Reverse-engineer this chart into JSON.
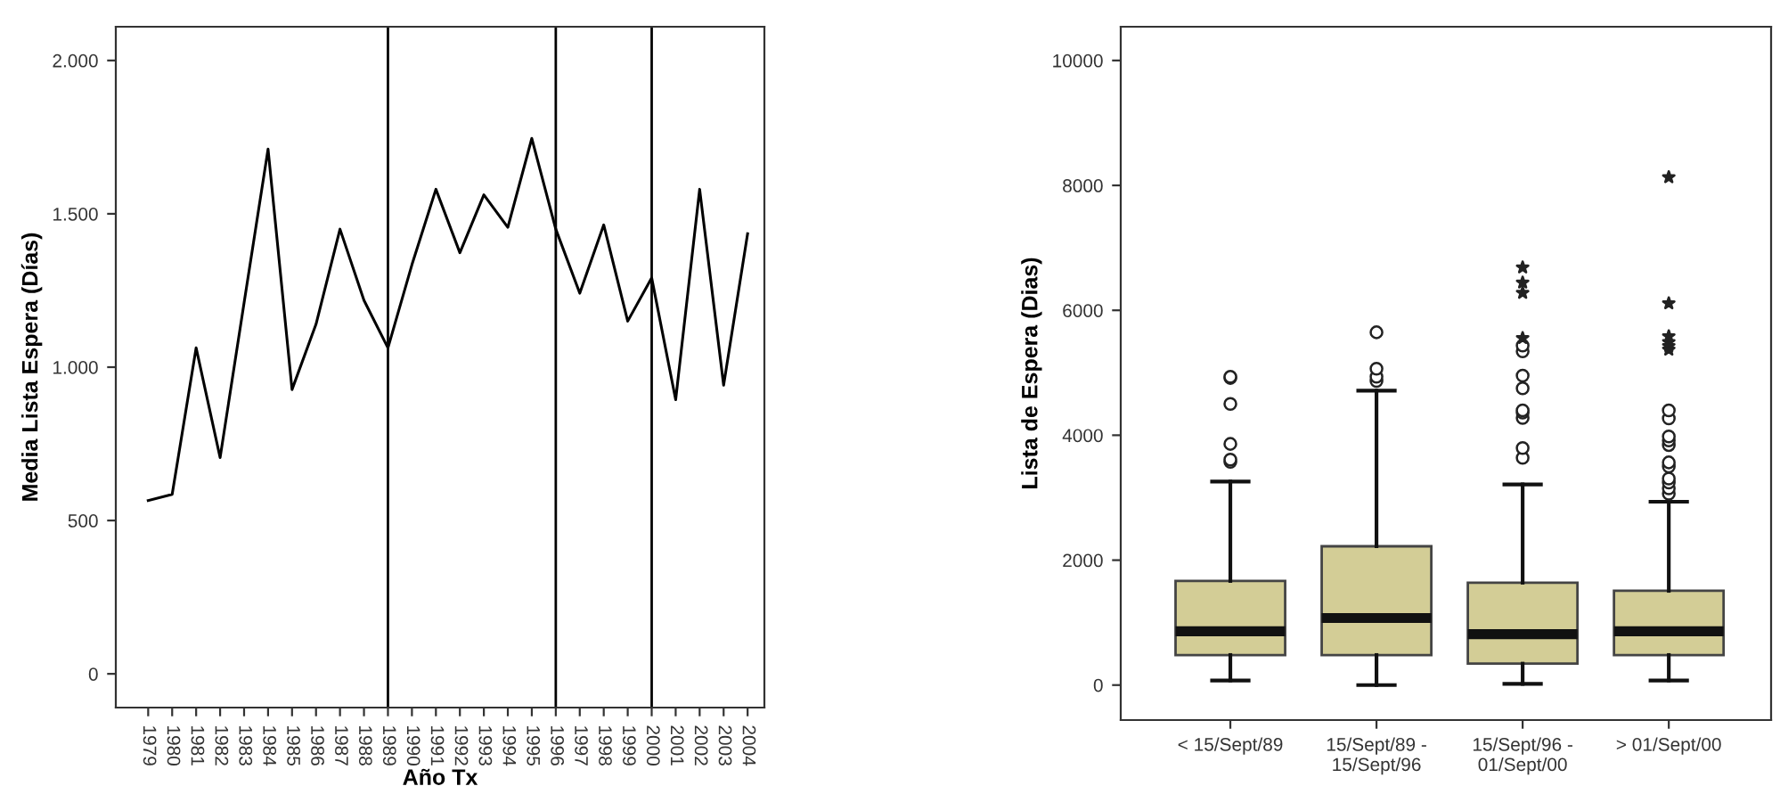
{
  "chart_data": [
    {
      "type": "line",
      "xlabel": "Año Tx",
      "ylabel": "Media Lista Espera (Días)",
      "categories": [
        "1979",
        "1980",
        "1981",
        "1982",
        "1983",
        "1984",
        "1985",
        "1986",
        "1987",
        "1988",
        "1989",
        "1990",
        "1991",
        "1992",
        "1993",
        "1994",
        "1995",
        "1996",
        "1997",
        "1998",
        "1999",
        "2000",
        "2001",
        "2002",
        "2003",
        "2004"
      ],
      "series": [
        {
          "color": "#000000",
          "values": [
            565,
            585,
            1063,
            705,
            1210,
            1711,
            927,
            1140,
            1450,
            1218,
            1063,
            1334,
            1580,
            1373,
            1562,
            1456,
            1746,
            1450,
            1241,
            1464,
            1150,
            1291,
            894,
            1580,
            941,
            1435
          ]
        }
      ],
      "ylim": [
        -110,
        2110
      ],
      "yticks": [
        0,
        500,
        {
          "value": 1000,
          "label": "1.000"
        },
        {
          "value": 1500,
          "label": "1.500"
        },
        {
          "value": 2000,
          "label": "2.000"
        }
      ],
      "ref_lines": [
        {
          "axis": "x",
          "value": "1989",
          "color": "#000000"
        },
        {
          "axis": "x",
          "value": "1996",
          "color": "#000000"
        },
        {
          "axis": "x",
          "value": "2000",
          "color": "#000000"
        }
      ],
      "grid": false,
      "legend": false
    },
    {
      "type": "box",
      "ylabel": "Lista de Espera (Dias)",
      "categories": [
        "< 15/Sept/89",
        "15/Sept/89 - 15/Sept/96",
        "15/Sept/96 - 01/Sept/00",
        "> 01/Sept/00"
      ],
      "series": [
        {
          "color": "#d3cd96",
          "boxes": [
            {
              "low": 74,
              "q1": 481,
              "median": 861,
              "q3": 1667,
              "high": 3259,
              "outliers": [
                3574,
                3611,
                3861,
                4500,
                4917,
                4935
              ]
            },
            {
              "low": 0,
              "q1": 481,
              "median": 1074,
              "q3": 2222,
              "high": 4713,
              "outliers": [
                4870,
                4935,
                5065,
                5648
              ]
            },
            {
              "low": 19,
              "q1": 343,
              "median": 815,
              "q3": 1639,
              "high": 3213,
              "outliers": [
                3639,
                3796,
                4278,
                4361,
                4398,
                4750,
                4954,
                5343,
                5435,
                5556,
                6278,
                6444,
                6685
              ]
            },
            {
              "low": 74,
              "q1": 481,
              "median": 861,
              "q3": 1509,
              "high": 2935,
              "outliers": [
                3065,
                3148,
                3241,
                3306,
                3500,
                3565,
                3843,
                3917,
                3981,
                4269,
                4398,
                5370,
                5426,
                5491,
                5583,
                6111,
                8130
              ]
            }
          ]
        }
      ],
      "ylim": [
        -560,
        10540
      ],
      "yticks": [
        0,
        2000,
        4000,
        6000,
        8000,
        10000
      ],
      "grid": false,
      "legend": false
    }
  ]
}
